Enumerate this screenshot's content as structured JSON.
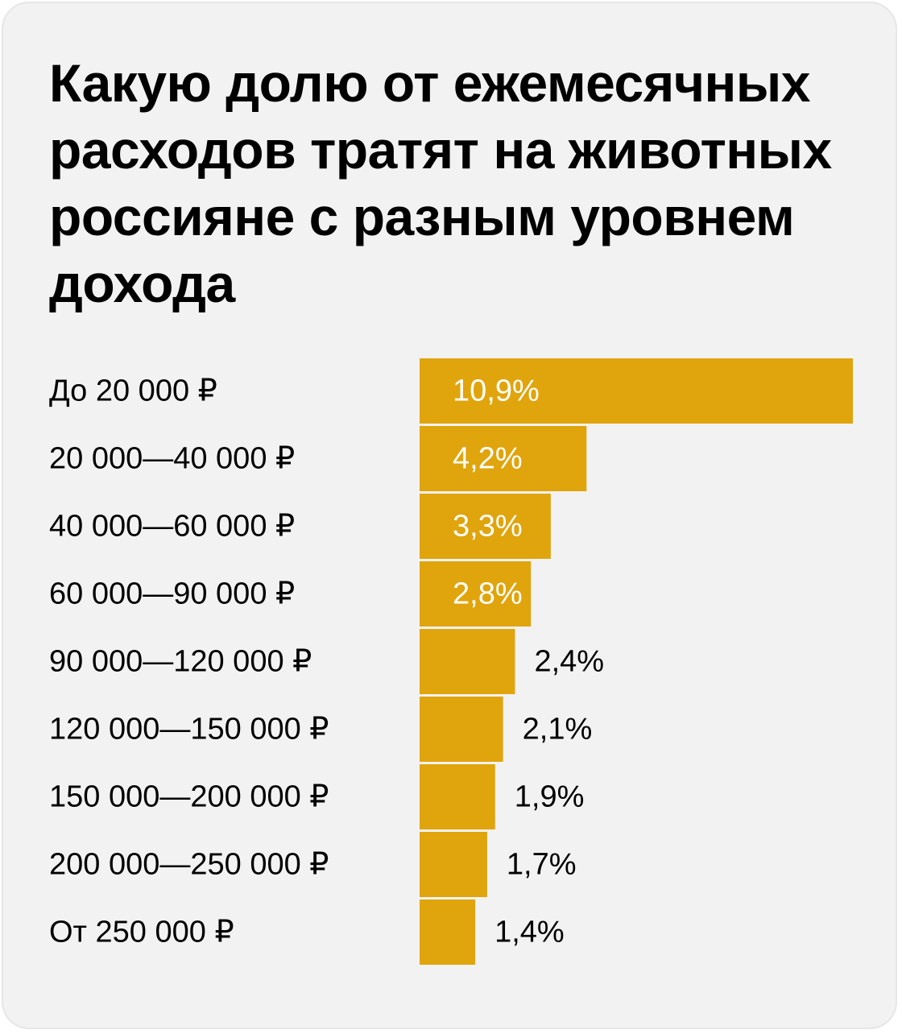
{
  "title": "Какую долю от ежемесячных расходов тратят на животных россияне с разным уровнем дохода",
  "colors": {
    "background": "#f2f2f2",
    "bar": "#e0a40c",
    "label_inside": "#ffffff",
    "label_outside": "#000000"
  },
  "chart_data": {
    "type": "bar",
    "orientation": "horizontal",
    "categories": [
      "До 20 000 ₽",
      "20 000—40 000 ₽",
      "40 000—60 000 ₽",
      "60 000—90 000 ₽",
      "90 000—120 000 ₽",
      "120 000—150 000 ₽",
      "150 000—200 000 ₽",
      "200 000—250 000 ₽",
      "От 250 000 ₽"
    ],
    "values": [
      10.9,
      4.2,
      3.3,
      2.8,
      2.4,
      2.1,
      1.9,
      1.7,
      1.4
    ],
    "value_labels": [
      "10,9%",
      "4,2%",
      "3,3%",
      "2,8%",
      "2,4%",
      "2,1%",
      "1,9%",
      "1,7%",
      "1,4%"
    ],
    "title": "Какую долю от ежемесячных расходов тратят на животных россияне с разным уровнем дохода",
    "xlabel": "",
    "ylabel": "",
    "grid": false,
    "legend": "none"
  }
}
